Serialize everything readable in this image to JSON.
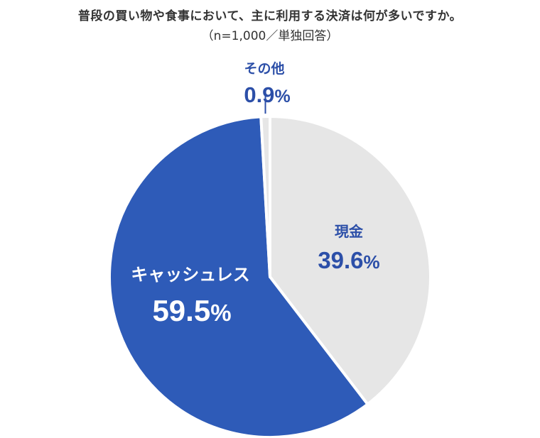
{
  "title": "普段の買い物や食事において、主に利用する決済は何が多いですか。",
  "subtitle": "（n=1,000／単独回答）",
  "chart_data": {
    "type": "pie",
    "slices": [
      {
        "label": "現金",
        "value": 39.6,
        "value_label": "39.6",
        "unit": "%",
        "color": "#e6e6e6",
        "text_color": "#2c4fa8"
      },
      {
        "label": "キャッシュレス",
        "value": 59.5,
        "value_label": "59.5",
        "unit": "%",
        "color": "#2e5bb8",
        "text_color": "#ffffff"
      },
      {
        "label": "その他",
        "value": 0.9,
        "value_label": "0.9",
        "unit": "%",
        "color": "#e6e6e6",
        "text_color": "#2c4fa8"
      }
    ],
    "start_angle": "12 o'clock",
    "direction": "clockwise",
    "legend": "none"
  }
}
